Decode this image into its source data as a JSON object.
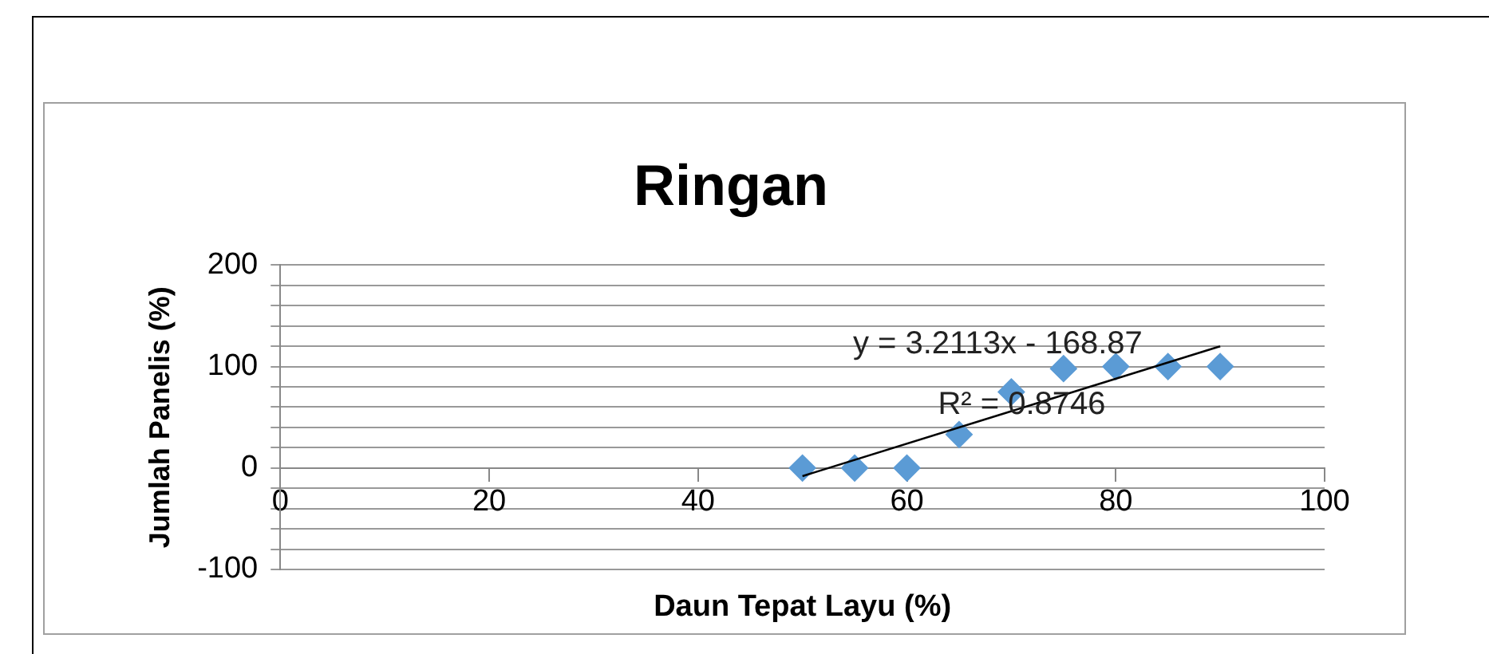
{
  "chart_data": {
    "type": "scatter",
    "title": "Ringan",
    "xlabel": "Daun Tepat Layu (%)",
    "ylabel": "Jumlah Panelis (%)",
    "xlim": [
      0,
      100
    ],
    "xticks": [
      0,
      20,
      40,
      60,
      80,
      100
    ],
    "ylim": [
      -100,
      200
    ],
    "yticks": [
      -100,
      {
        "value": -80,
        "label": null
      },
      {
        "value": -60,
        "label": null
      },
      {
        "value": -40,
        "label": null
      },
      {
        "value": -20,
        "label": null
      },
      0,
      {
        "value": 20,
        "label": null
      },
      {
        "value": 40,
        "label": null
      },
      {
        "value": 60,
        "label": null
      },
      {
        "value": 80,
        "label": null
      },
      100,
      {
        "value": 120,
        "label": null
      },
      {
        "value": 140,
        "label": null
      },
      {
        "value": 160,
        "label": null
      },
      {
        "value": 180,
        "label": null
      },
      200
    ],
    "grid": "y",
    "legend": false,
    "series": [
      {
        "color": "#5b9bd5",
        "marker": "diamond",
        "x": [
          50,
          55,
          60,
          65,
          70,
          75,
          80,
          85,
          90
        ],
        "values": [
          0,
          0,
          0,
          33,
          75,
          98,
          100,
          100,
          100
        ]
      },
      {
        "type": "line",
        "color": "#000000",
        "x": [
          50,
          90
        ],
        "values": [
          -8,
          120
        ]
      }
    ],
    "annotations": [
      "y = 3.2113x - 168.87",
      "R² = 0.8746"
    ]
  }
}
